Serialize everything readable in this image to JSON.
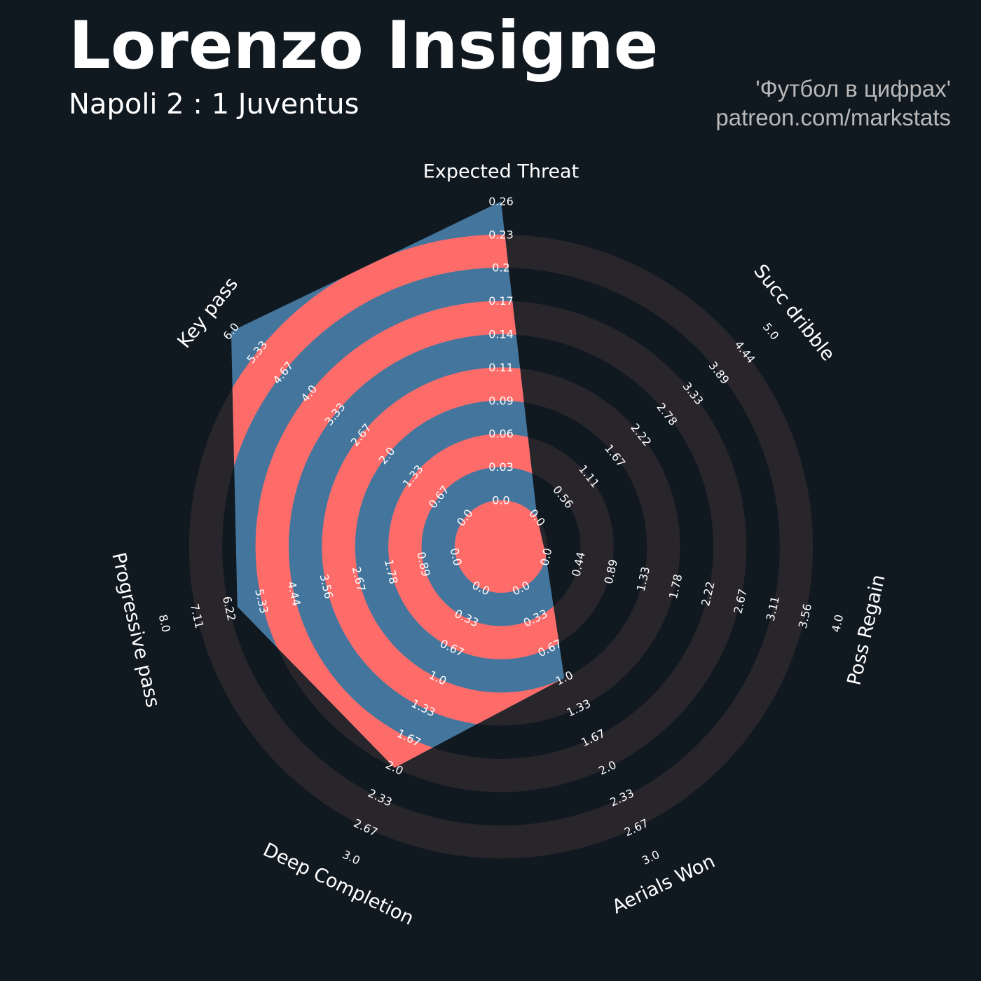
{
  "header": {
    "title": "Lorenzo Insigne",
    "subtitle": "Napoli 2 : 1 Juventus",
    "credit_line1": "'Футбол в цифрах'",
    "credit_line2": "patreon.com/markstats"
  },
  "colors": {
    "background": "#101820",
    "range_band": "#28252b",
    "player_blue": "#44769d",
    "player_red": "#fe6c6a",
    "text": "#ffffff",
    "credit": "#b8b8b8"
  },
  "chart_data": {
    "type": "radar",
    "title": "Lorenzo Insigne",
    "subtitle": "Napoli 2 : 1 Juventus",
    "player": "Lorenzo Insigne",
    "params": [
      {
        "name": "Expected Threat",
        "min": 0.0,
        "max": 0.26,
        "value": 0.26,
        "ticks": [
          "0.0",
          "0.03",
          "0.06",
          "0.09",
          "0.11",
          "0.14",
          "0.17",
          "0.2",
          "0.23",
          "0.26"
        ]
      },
      {
        "name": "Succ dribble",
        "min": 0.0,
        "max": 5.0,
        "value": 0.0,
        "ticks": [
          "0.0",
          "0.56",
          "1.11",
          "1.67",
          "2.22",
          "2.78",
          "3.33",
          "3.89",
          "4.44",
          "5.0"
        ]
      },
      {
        "name": "Poss Regain",
        "min": 0.0,
        "max": 4.0,
        "value": 0.0,
        "ticks": [
          "0.0",
          "0.44",
          "0.89",
          "1.33",
          "1.78",
          "2.22",
          "2.67",
          "3.11",
          "3.56",
          "4.0"
        ]
      },
      {
        "name": "Aerials Won",
        "min": 0.0,
        "max": 3.0,
        "value": 1.0,
        "ticks": [
          "0.0",
          "0.33",
          "0.67",
          "1.0",
          "1.33",
          "1.67",
          "2.0",
          "2.33",
          "2.67",
          "3.0"
        ]
      },
      {
        "name": "Deep Completion",
        "min": 0.0,
        "max": 3.0,
        "value": 2.0,
        "ticks": [
          "0.0",
          "0.33",
          "0.67",
          "1.0",
          "1.33",
          "1.67",
          "2.0",
          "2.33",
          "2.67",
          "3.0"
        ]
      },
      {
        "name": "Progressive pass",
        "min": 0.0,
        "max": 8.0,
        "value": 6.0,
        "ticks": [
          "0.0",
          "0.89",
          "1.78",
          "2.67",
          "3.56",
          "4.44",
          "5.33",
          "6.22",
          "7.11",
          "8.0"
        ]
      },
      {
        "name": "Key pass",
        "min": 0.0,
        "max": 6.0,
        "value": 6.0,
        "ticks": [
          "0.0",
          "0.67",
          "1.33",
          "2.0",
          "2.67",
          "3.33",
          "4.0",
          "4.67",
          "5.33",
          "6.0"
        ]
      }
    ]
  }
}
